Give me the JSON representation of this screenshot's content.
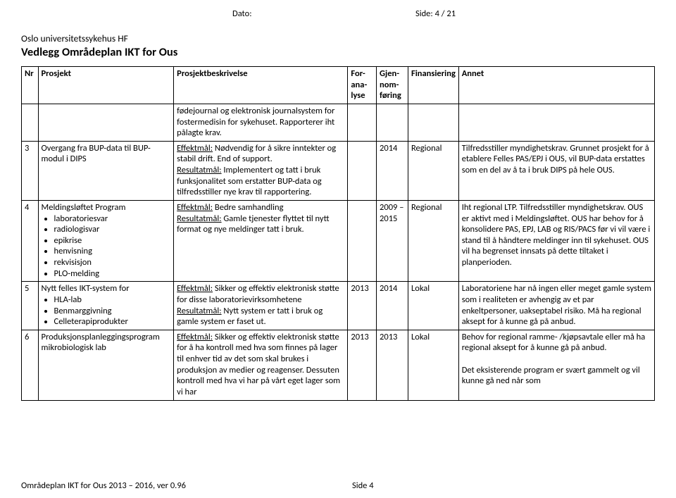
{
  "header": {
    "dato_label": "Dato:",
    "side_label": "Side:",
    "side_current": "4",
    "side_sep": " / ",
    "side_total": "21",
    "org": "Oslo universitetssykehus HF",
    "title": "Vedlegg Områdeplan IKT for Ous"
  },
  "table": {
    "columns": {
      "nr": "Nr",
      "prosjekt": "Prosjekt",
      "beskrivelse": "Prosjektbeskrivelse",
      "foranalyse": "For-ana-lyse",
      "gjennomforing": "Gjen-nom-føring",
      "finansiering": "Finansiering",
      "annet": "Annet"
    },
    "rows": [
      {
        "nr": "",
        "prosjekt_plain": "",
        "desc_plain": "fødejournal og elektronisk journalsystem for fostermedisin for sykehuset. Rapporterer iht pålagte krav.",
        "foranalyse": "",
        "gjennomforing": "",
        "finansiering": "",
        "annet": ""
      },
      {
        "nr": "3",
        "prosjekt_plain": "Overgang fra BUP-data til BUP-modul i DIPS",
        "desc_eff_label": "Effektmål:",
        "desc_eff": " Nødvendig for å sikre inntekter og stabil drift. End of support.",
        "desc_res_label": "Resultatmål:",
        "desc_res": " Implementert og tatt i bruk funksjonalitet som erstatter BUP-data og tilfredsstiller nye krav til rapportering.",
        "foranalyse": "",
        "gjennomforing": "2014",
        "finansiering": "Regional",
        "annet": "Tilfredsstiller myndighetskrav. Grunnet prosjekt for å etablere Felles PAS/EPJ i OUS, vil BUP-data erstattes som en del av å ta i bruk DIPS på hele OUS."
      },
      {
        "nr": "4",
        "prosjekt_plain": "Meldingsløftet Program",
        "bullets": [
          "laboratoriesvar",
          "radiologisvar",
          "epikrise",
          "henvisning",
          "rekvisisjon",
          "PLO-melding"
        ],
        "desc_eff_label": "Effektmål:",
        "desc_eff": " Bedre samhandling",
        "desc_res_label": "Resultatmål:",
        "desc_res": " Gamle tjenester flyttet til nytt format og nye meldinger tatt i bruk.",
        "foranalyse": "",
        "gjennomforing": "2009 – 2015",
        "finansiering": "Regional",
        "annet": "Iht regional LTP. Tilfredsstiller myndighetskrav. OUS er aktivt med i Meldingsløftet. OUS har behov for å konsolidere PAS, EPJ, LAB og RIS/PACS før vi vil være i stand til å håndtere meldinger inn til sykehuset. OUS vil ha begrenset innsats på dette tiltaket i planperioden."
      },
      {
        "nr": "5",
        "prosjekt_plain": "Nytt felles IKT-system for",
        "bullets": [
          "HLA-lab",
          "Benmarggivning",
          "Celleterapiprodukter"
        ],
        "desc_eff_label": "Effektmål:",
        "desc_eff": " Sikker og effektiv elektronisk støtte for disse laboratorievirksomhetene",
        "desc_res_label": "Resultatmål:",
        "desc_res": " Nytt system er tatt i bruk og gamle system er faset ut.",
        "foranalyse": "2013",
        "gjennomforing": "2014",
        "finansiering": "Lokal",
        "annet": "Laboratoriene har nå ingen eller meget gamle system som i realiteten er avhengig av et par enkeltpersoner, uakseptabel risiko. Må ha regional aksept for å kunne gå på anbud."
      },
      {
        "nr": "6",
        "prosjekt_plain": "Produksjonsplanleggingsprogram mikrobiologisk lab",
        "desc_eff_label": "Effektmål:",
        "desc_eff": " Sikker og effektiv elektronisk støtte for å ha kontroll med hva som finnes på lager til enhver tid av det som skal brukes i produksjon av medier og reagenser. Dessuten kontroll med hva vi har på vårt eget lager som vi har",
        "foranalyse": "2013",
        "gjennomforing": "2013",
        "finansiering": "Lokal",
        "annet_p1": "Behov for regional ramme- /kjøpsavtale eller må ha regional aksept for å kunne gå på anbud.",
        "annet_p2": "Det eksisterende program er svært gammelt og vil kunne gå ned når som"
      }
    ]
  },
  "footer": {
    "left": "Områdeplan IKT for Ous 2013 – 2016, ver 0.96",
    "page": "Side 4"
  }
}
